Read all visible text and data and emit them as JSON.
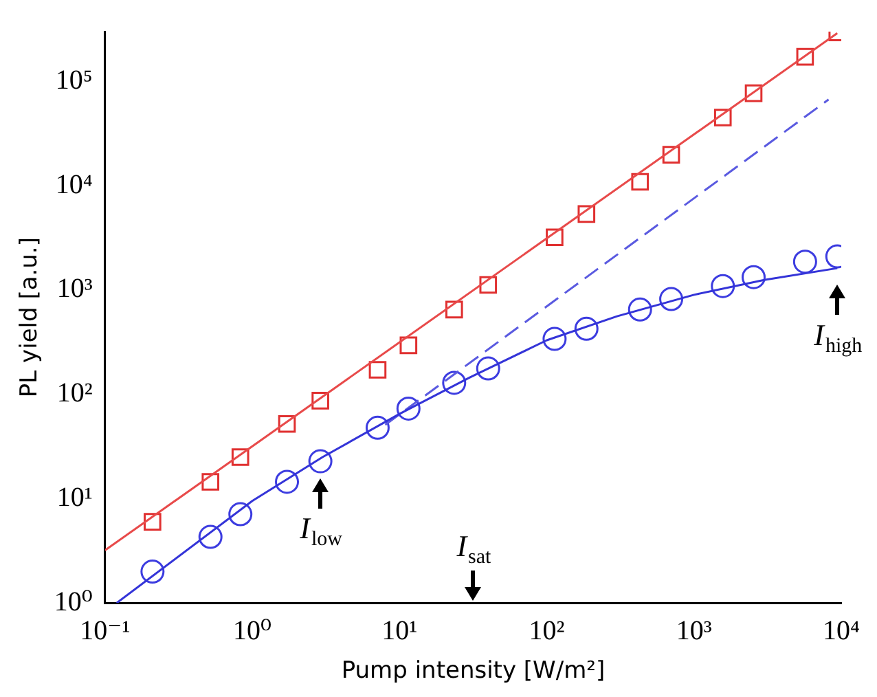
{
  "chart_data": {
    "type": "scatter",
    "xlabel": "Pump intensity [W/m²]",
    "ylabel": "PL yield [a.u.]",
    "log": "xy",
    "grid": false,
    "legend": false,
    "xlim": [
      0.1,
      10000
    ],
    "ylim": [
      1,
      300000
    ],
    "xticks": [
      {
        "value": 0.1,
        "label": "10⁻¹"
      },
      {
        "value": 1,
        "label": "10⁰"
      },
      {
        "value": 10,
        "label": "10¹"
      },
      {
        "value": 100,
        "label": "10²"
      },
      {
        "value": 1000,
        "label": "10³"
      },
      {
        "value": 10000,
        "label": "10⁴"
      }
    ],
    "yticks": [
      {
        "value": 1,
        "label": "10⁰"
      },
      {
        "value": 10,
        "label": "10¹"
      },
      {
        "value": 100,
        "label": "10²"
      },
      {
        "value": 1000,
        "label": "10³"
      },
      {
        "value": 10000,
        "label": "10⁴"
      },
      {
        "value": 100000,
        "label": "10⁵"
      }
    ],
    "series": [
      {
        "type": "line",
        "color": "#e84a4a",
        "marker": "none",
        "line_style": "solid",
        "x": [
          0.1,
          9400
        ],
        "values": [
          3.2,
          290000
        ]
      },
      {
        "type": "line",
        "color": "#3434d8",
        "marker": "none",
        "line_style": "solid",
        "x": [
          0.12,
          1,
          3,
          10,
          30,
          100,
          300,
          1000,
          3000,
          9400
        ],
        "values": [
          1,
          9.5,
          25,
          65,
          145,
          330,
          560,
          900,
          1250,
          1620
        ]
      },
      {
        "type": "line",
        "color": "#5a5ae0",
        "marker": "none",
        "line_style": "dashed",
        "x": [
          8,
          8200
        ],
        "values": [
          51,
          67000
        ]
      },
      {
        "type": "scatter",
        "color": "#e03030",
        "marker": "square",
        "x": [
          0.21,
          0.52,
          0.83,
          1.72,
          2.9,
          7.1,
          11.5,
          23.5,
          40,
          113,
          186,
          430,
          700,
          1570,
          2540,
          5680,
          9400
        ],
        "values": [
          6,
          14.5,
          25,
          52,
          87,
          172,
          295,
          650,
          1120,
          3200,
          5350,
          10900,
          19800,
          45000,
          77000,
          172000,
          295000
        ]
      },
      {
        "type": "scatter",
        "color": "#3c3ce0",
        "marker": "circle",
        "x": [
          0.21,
          0.52,
          0.83,
          1.72,
          2.9,
          7.1,
          11.5,
          23.5,
          40,
          113,
          186,
          430,
          700,
          1570,
          2540,
          5680,
          9400
        ],
        "values": [
          2,
          4.3,
          7.1,
          14.5,
          22.8,
          47.8,
          73,
          129,
          177,
          340,
          425,
          650,
          820,
          1090,
          1330,
          1870,
          2100
        ]
      }
    ],
    "annotations": [
      {
        "text": "I$_{low}$",
        "x": 2.9,
        "y": 22.8
      },
      "I$_{sat}$",
      {
        "text": "I$_{high}$",
        "x": 9400,
        "y": 1620
      }
    ]
  }
}
